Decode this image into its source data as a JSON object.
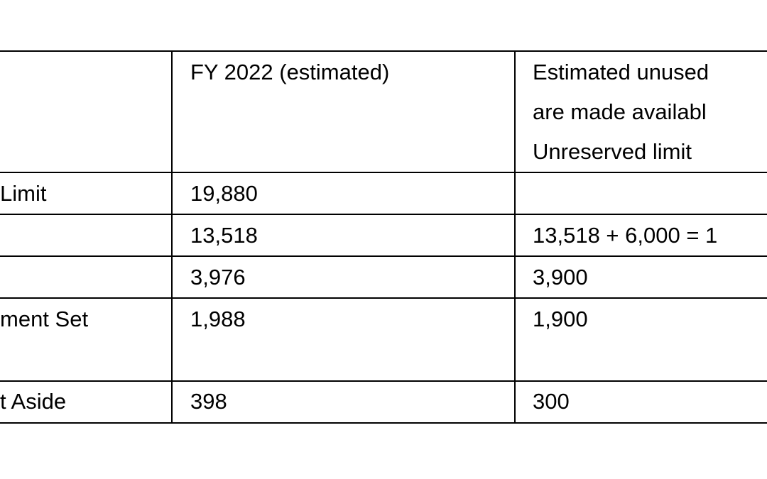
{
  "table": {
    "header": [
      null,
      "FY 2022 (estimated)",
      [
        "Estimated unused",
        "are made availabl",
        "Unreserved limit"
      ]
    ],
    "rows": [
      [
        "Limit",
        "19,880",
        null
      ],
      [
        null,
        "13,518",
        "13,518 + 6,000 = 1"
      ],
      [
        null,
        "3,976",
        "3,900"
      ],
      [
        "ment Set",
        "1,988",
        "1,900"
      ],
      [
        "t Aside",
        "398",
        "300"
      ]
    ]
  }
}
